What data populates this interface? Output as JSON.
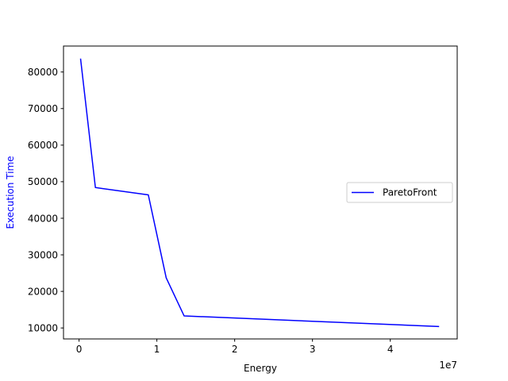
{
  "chart_data": {
    "type": "line",
    "title": "",
    "xlabel": "Energy",
    "ylabel": "Execution Time",
    "x_offset_label": "1e7",
    "x_scale": 10000000,
    "xlim": [
      -2000000,
      48600000
    ],
    "ylim": [
      7000,
      87100
    ],
    "x_ticks": [
      0,
      10000000,
      20000000,
      30000000,
      40000000
    ],
    "x_tick_labels": [
      "0",
      "1",
      "2",
      "3",
      "4"
    ],
    "y_ticks": [
      10000,
      20000,
      30000,
      40000,
      50000,
      60000,
      70000,
      80000
    ],
    "y_tick_labels": [
      "10000",
      "20000",
      "30000",
      "40000",
      "50000",
      "60000",
      "70000",
      "80000"
    ],
    "grid": false,
    "legend_position": "center-right",
    "series": [
      {
        "name": "ParetoFront",
        "color": "#0000ff",
        "x": [
          200000,
          2100000,
          8900000,
          11200000,
          13500000,
          46200000
        ],
        "y": [
          83500,
          48400,
          46400,
          23700,
          13300,
          10400
        ]
      }
    ]
  },
  "colors": {
    "ylabel": "#0000ff",
    "axis": "#000000",
    "background": "#ffffff"
  }
}
